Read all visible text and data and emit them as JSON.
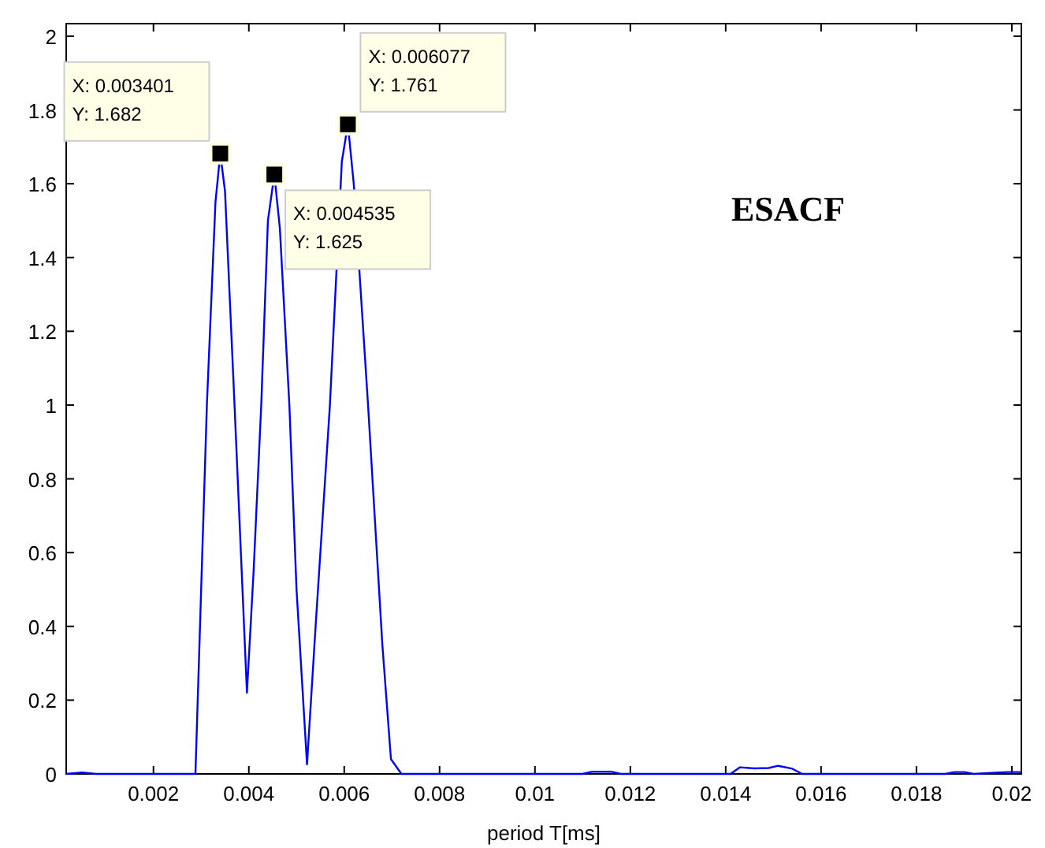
{
  "chart_data": {
    "type": "line",
    "xlabel": "period T[ms]",
    "x": [
      0.00017,
      0.0005,
      0.0008,
      0.0015,
      0.0025,
      0.00288,
      0.00312,
      0.0033,
      0.003401,
      0.0035,
      0.0037,
      0.00385,
      0.00396,
      0.0041,
      0.00426,
      0.0044,
      0.004535,
      0.00465,
      0.00485,
      0.005,
      0.00522,
      0.0054,
      0.0057,
      0.00595,
      0.006077,
      0.0062,
      0.0065,
      0.0068,
      0.00698,
      0.0072,
      0.0075,
      0.011,
      0.0112,
      0.0116,
      0.0118,
      0.0141,
      0.0143,
      0.0146,
      0.0149,
      0.0151,
      0.0154,
      0.0156,
      0.0186,
      0.0188,
      0.019,
      0.0192,
      0.0199,
      0.0202
    ],
    "series": [
      {
        "color": "#0000ff",
        "values": [
          0,
          0.004,
          0,
          0,
          0,
          0,
          1.0,
          1.55,
          1.682,
          1.58,
          1.0,
          0.55,
          0.22,
          0.55,
          1.0,
          1.5,
          1.625,
          1.48,
          1.0,
          0.5,
          0.026,
          0.4,
          1.0,
          1.66,
          1.761,
          1.6,
          1.0,
          0.35,
          0.04,
          0,
          0,
          0,
          0.006,
          0.006,
          0,
          0,
          0.018,
          0.015,
          0.016,
          0.022,
          0.014,
          0,
          0,
          0.005,
          0.005,
          0,
          0.005,
          0.005
        ]
      }
    ],
    "xlim": [
      0.00017,
      0.0202
    ],
    "ylim": [
      0,
      2.034
    ],
    "xticks": [
      0.002,
      0.004,
      0.006,
      0.008,
      0.01,
      0.012,
      0.014,
      0.016,
      0.018,
      0.02
    ],
    "yticks": [
      0,
      0.2,
      0.4,
      0.6,
      0.8,
      1,
      1.2,
      1.4,
      1.6,
      1.8,
      2
    ],
    "grid": false,
    "marker": "none",
    "line_style": "solid",
    "annotations": [
      {
        "text": "X: 0.003401\nY: 1.682",
        "x": 0.003401,
        "y": 1.682
      },
      {
        "text": "X: 0.004535\nY: 1.625",
        "x": 0.004535,
        "y": 1.625
      },
      {
        "text": "X: 0.006077\nY: 1.761",
        "x": 0.006077,
        "y": 1.761
      },
      "ESACF"
    ]
  }
}
